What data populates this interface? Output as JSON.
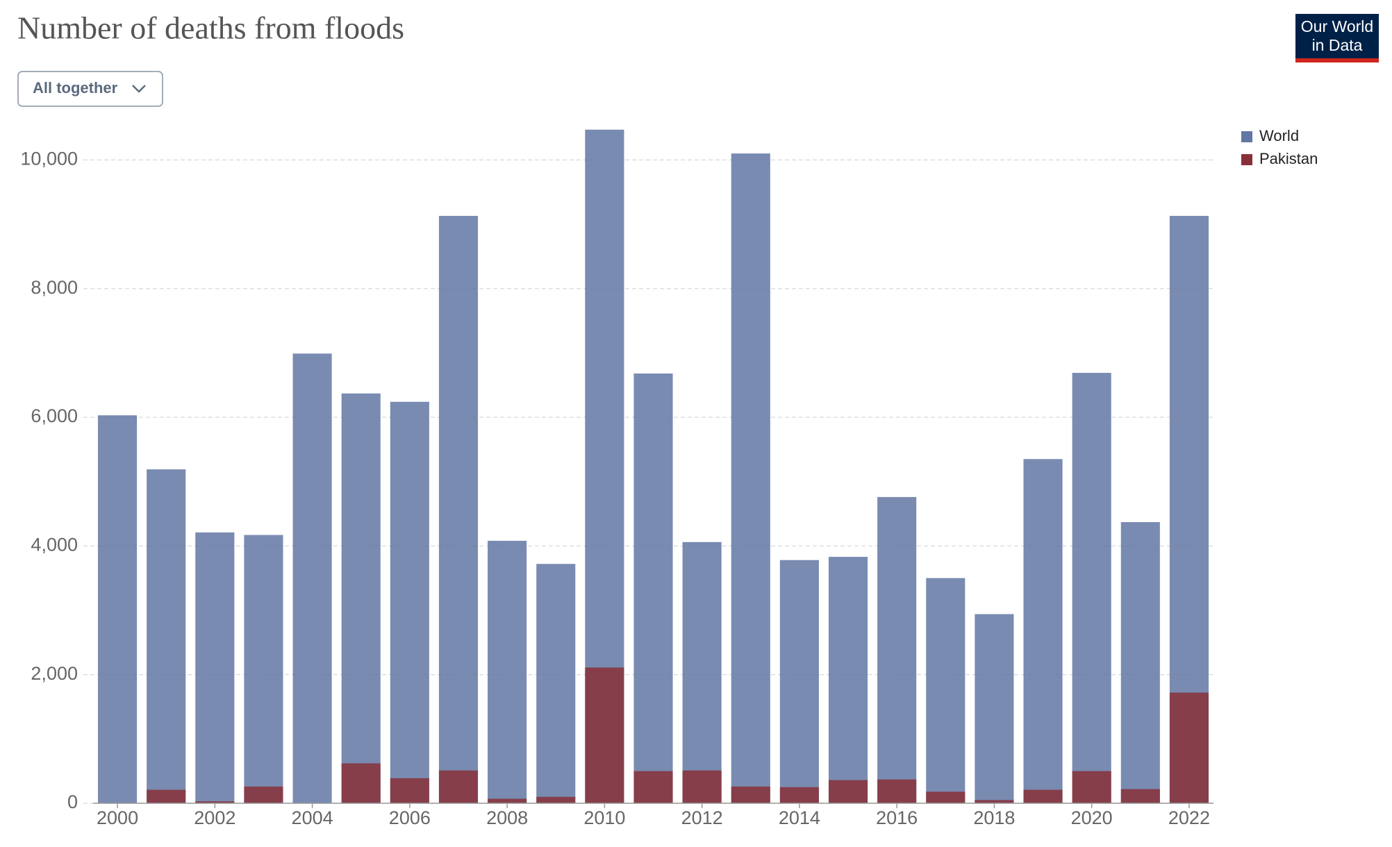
{
  "chart_data": {
    "type": "bar",
    "title": "Number of deaths from floods",
    "control": "All together",
    "logo": [
      "Our World",
      "in Data"
    ],
    "categories": [
      "2000",
      null,
      "2002",
      null,
      "2004",
      null,
      "2006",
      null,
      "2008",
      null,
      "2010",
      null,
      "2012",
      null,
      "2014",
      null,
      "2016",
      null,
      "2018",
      null,
      "2020",
      null,
      "2022"
    ],
    "series": [
      {
        "name": "World",
        "color": "#6277a3",
        "values": [
          6030,
          5190,
          4210,
          4170,
          6990,
          6370,
          6240,
          9130,
          4080,
          3720,
          10470,
          6680,
          4060,
          10100,
          3780,
          3830,
          4760,
          3500,
          2940,
          5350,
          6690,
          4370,
          9130
        ]
      },
      {
        "name": "Pakistan",
        "color": "#883039",
        "values": [
          0,
          210,
          30,
          260,
          0,
          620,
          390,
          510,
          70,
          100,
          2110,
          500,
          510,
          260,
          250,
          360,
          370,
          180,
          50,
          210,
          500,
          220,
          1720
        ]
      }
    ],
    "ylim": [
      0,
      10500
    ],
    "yticks": [
      0,
      {
        "value": 2000,
        "label": "2,000"
      },
      {
        "value": 4000,
        "label": "4,000"
      },
      {
        "value": 6000,
        "label": "6,000"
      },
      {
        "value": 8000,
        "label": "8,000"
      },
      {
        "value": 10000,
        "label": "10,000"
      }
    ],
    "grid": true,
    "legend": "right"
  }
}
